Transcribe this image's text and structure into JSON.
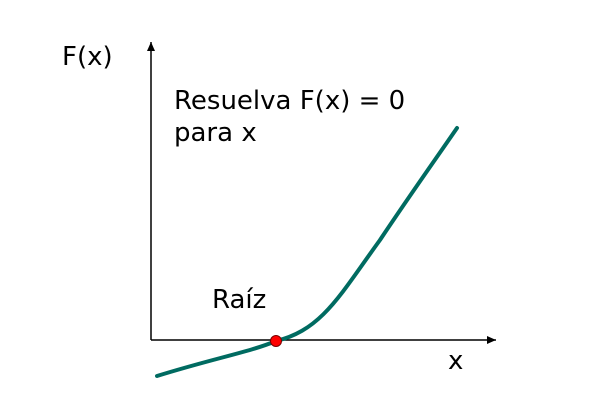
{
  "diagram": {
    "y_axis_label": "F(x)",
    "x_axis_label": "x",
    "equation_line1": "Resuelva F(x) = 0",
    "equation_line2": "para x",
    "root_label": "Raíz"
  },
  "colors": {
    "curve": "#006B61",
    "root_point": "#FF0000",
    "axis": "#000000"
  }
}
